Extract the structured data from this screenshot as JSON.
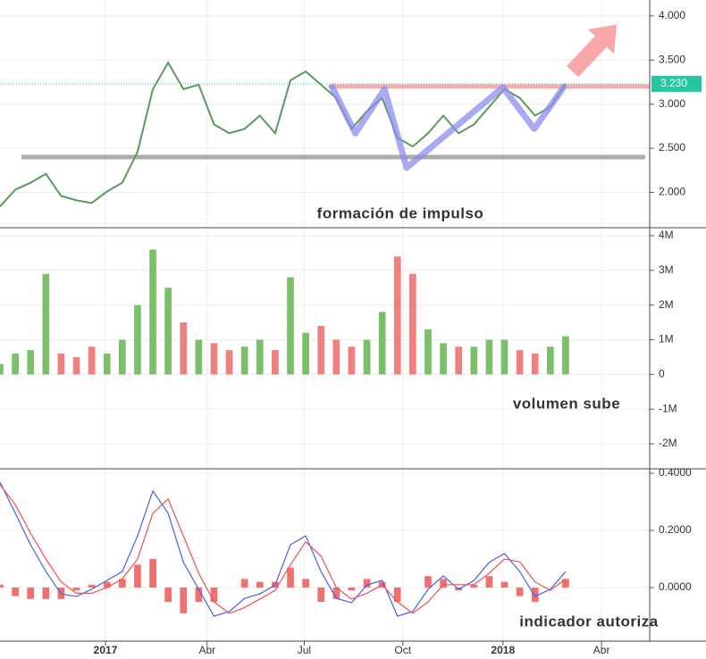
{
  "chart_data": [
    {
      "type": "line",
      "annotation": "formación de impulso",
      "x": [
        0,
        2,
        4,
        6,
        8,
        10,
        12,
        14,
        16,
        18,
        20,
        22,
        24,
        26,
        28,
        30,
        32,
        34,
        36,
        38,
        40,
        42,
        44,
        46,
        48,
        50,
        52,
        54,
        56,
        58,
        60,
        62,
        64,
        66,
        68,
        70,
        72,
        74
      ],
      "series": [
        {
          "color": "#5a9a5a",
          "values": [
            1.84,
            2.03,
            2.11,
            2.21,
            1.96,
            1.91,
            1.88,
            2.01,
            2.11,
            2.46,
            3.17,
            3.47,
            3.17,
            3.22,
            2.77,
            2.67,
            2.72,
            2.87,
            2.67,
            3.27,
            3.37,
            3.22,
            3.07,
            2.72,
            2.92,
            3.07,
            2.62,
            2.52,
            2.67,
            2.87,
            2.67,
            2.77,
            2.97,
            3.17,
            3.07,
            2.87,
            2.97,
            3.23
          ]
        }
      ],
      "hlines": [
        {
          "value": 2.4,
          "x": [
            2.8,
            84.4
          ],
          "color": "#9e9e9e"
        },
        {
          "value": 3.2,
          "x": [
            43,
            85
          ],
          "color": "#f4a0a0"
        },
        {
          "value": 3.23,
          "label": "3.230",
          "color": "#26c6a0"
        }
      ],
      "pattern": {
        "color": "#8c8cf0",
        "x": [
          43.3,
          46.5,
          50.3,
          53.2,
          65.8,
          69.9,
          73.9
        ],
        "y": [
          3.22,
          2.67,
          3.17,
          2.28,
          3.19,
          2.72,
          3.21
        ]
      },
      "arrow": {
        "color": "#f8a8a8",
        "x": [
          74.9,
          80.7
        ],
        "y": [
          3.37,
          3.9
        ]
      },
      "xlim": [
        0,
        85
      ],
      "ylim": [
        1.6,
        4.18
      ],
      "yticks": [
        {
          "value": 2,
          "label": "2.000"
        },
        {
          "value": 2.5,
          "label": "2.500"
        },
        {
          "value": 3,
          "label": "3.000"
        },
        {
          "value": 3.5,
          "label": "3.500"
        },
        {
          "value": 4,
          "label": "4.000"
        }
      ],
      "grid": true
    },
    {
      "type": "bar",
      "annotation": "volumen sube",
      "x": [
        0,
        2,
        4,
        6,
        8,
        10,
        12,
        14,
        16,
        18,
        20,
        22,
        24,
        26,
        28,
        30,
        32,
        34,
        36,
        38,
        40,
        42,
        44,
        46,
        48,
        50,
        52,
        54,
        56,
        58,
        60,
        62,
        64,
        66,
        68,
        70,
        72,
        74
      ],
      "values": [
        300000,
        600000,
        700000,
        2900000,
        600000,
        500000,
        800000,
        600000,
        1000000,
        2000000,
        3600000,
        2500000,
        1500000,
        1000000,
        900000,
        700000,
        800000,
        1000000,
        700000,
        2800000,
        1200000,
        1400000,
        1000000,
        800000,
        1000000,
        1800000,
        3400000,
        2900000,
        1300000,
        900000,
        800000,
        800000,
        1000000,
        1000000,
        700000,
        600000,
        800000,
        1100000
      ],
      "colors": [
        "#7cbf6a",
        "#7cbf6a",
        "#7cbf6a",
        "#7cbf6a",
        "#f08080",
        "#f08080",
        "#f08080",
        "#7cbf6a",
        "#7cbf6a",
        "#7cbf6a",
        "#7cbf6a",
        "#7cbf6a",
        "#f08080",
        "#7cbf6a",
        "#f08080",
        "#f08080",
        "#7cbf6a",
        "#7cbf6a",
        "#f08080",
        "#7cbf6a",
        "#7cbf6a",
        "#f08080",
        "#f08080",
        "#f08080",
        "#7cbf6a",
        "#7cbf6a",
        "#f08080",
        "#f08080",
        "#7cbf6a",
        "#7cbf6a",
        "#f08080",
        "#7cbf6a",
        "#7cbf6a",
        "#7cbf6a",
        "#f08080",
        "#f08080",
        "#7cbf6a",
        "#7cbf6a"
      ],
      "xlim": [
        0,
        85
      ],
      "ylim": [
        -2720000,
        4230000
      ],
      "yticks": [
        {
          "value": -2000000,
          "label": "-2M"
        },
        {
          "value": -1000000,
          "label": "-1M"
        },
        0,
        {
          "value": 1000000,
          "label": "1M"
        },
        {
          "value": 2000000,
          "label": "2M"
        },
        {
          "value": 3000000,
          "label": "3M"
        },
        {
          "value": 4000000,
          "label": "4M"
        }
      ],
      "grid": true
    },
    {
      "type": "line",
      "annotation": "indicador autoriza",
      "x": [
        0,
        2,
        4,
        6,
        8,
        10,
        12,
        14,
        16,
        18,
        20,
        22,
        24,
        26,
        28,
        30,
        32,
        34,
        36,
        38,
        40,
        42,
        44,
        46,
        48,
        50,
        52,
        54,
        56,
        58,
        60,
        62,
        64,
        66,
        68,
        70,
        72,
        74
      ],
      "series": [
        {
          "color": "#4a5ee8",
          "values": [
            0.369,
            0.26,
            0.15,
            0.056,
            -0.022,
            -0.031,
            -0.006,
            0.025,
            0.056,
            0.181,
            0.338,
            0.26,
            0.088,
            -0.006,
            -0.1,
            -0.084,
            -0.038,
            -0.022,
            0.009,
            0.15,
            0.181,
            0.056,
            -0.038,
            -0.053,
            0.009,
            0.025,
            -0.1,
            -0.084,
            -0.006,
            0.041,
            -0.006,
            0.025,
            0.088,
            0.119,
            0.056,
            -0.031,
            -0.006,
            0.056
          ]
        },
        {
          "color": "#f05050",
          "values": [
            0.36,
            0.29,
            0.19,
            0.1,
            0.02,
            -0.02,
            -0.02,
            0.0,
            0.03,
            0.1,
            0.26,
            0.31,
            0.18,
            0.05,
            -0.05,
            -0.09,
            -0.07,
            -0.04,
            -0.01,
            0.08,
            0.16,
            0.11,
            0.0,
            -0.04,
            -0.02,
            0.01,
            -0.05,
            -0.09,
            -0.05,
            0.01,
            0.01,
            0.01,
            0.05,
            0.1,
            0.09,
            0.02,
            -0.01,
            0.03
          ]
        }
      ],
      "histogram": {
        "color": "#f07070",
        "values": [
          0.01,
          -0.03,
          -0.04,
          -0.04,
          -0.04,
          -0.01,
          0.01,
          0.02,
          0.03,
          0.08,
          0.1,
          -0.05,
          -0.09,
          -0.05,
          -0.05,
          0.0,
          0.03,
          0.02,
          0.02,
          0.07,
          0.03,
          -0.05,
          -0.04,
          -0.01,
          0.03,
          0.02,
          -0.05,
          0.0,
          0.04,
          0.03,
          -0.01,
          0.01,
          0.04,
          0.02,
          -0.03,
          -0.05,
          0.0,
          0.03
        ]
      },
      "xlim": [
        0,
        85
      ],
      "ylim": [
        -0.1875,
        0.4156
      ],
      "yticks": [
        {
          "value": 0,
          "label": "0.0000"
        },
        {
          "value": 0.2,
          "label": "0.2000"
        },
        {
          "value": 0.4,
          "label": "0.4000"
        }
      ],
      "xticks": [
        {
          "value": 13.8,
          "label": "2017"
        },
        {
          "value": 27.1,
          "label": "Abr"
        },
        {
          "value": 39.8,
          "label": "Jul"
        },
        {
          "value": 52.7,
          "label": "Oct"
        },
        {
          "value": 65.8,
          "label": "2018"
        },
        {
          "value": 78.7,
          "label": "Abr"
        }
      ],
      "grid": true
    }
  ]
}
